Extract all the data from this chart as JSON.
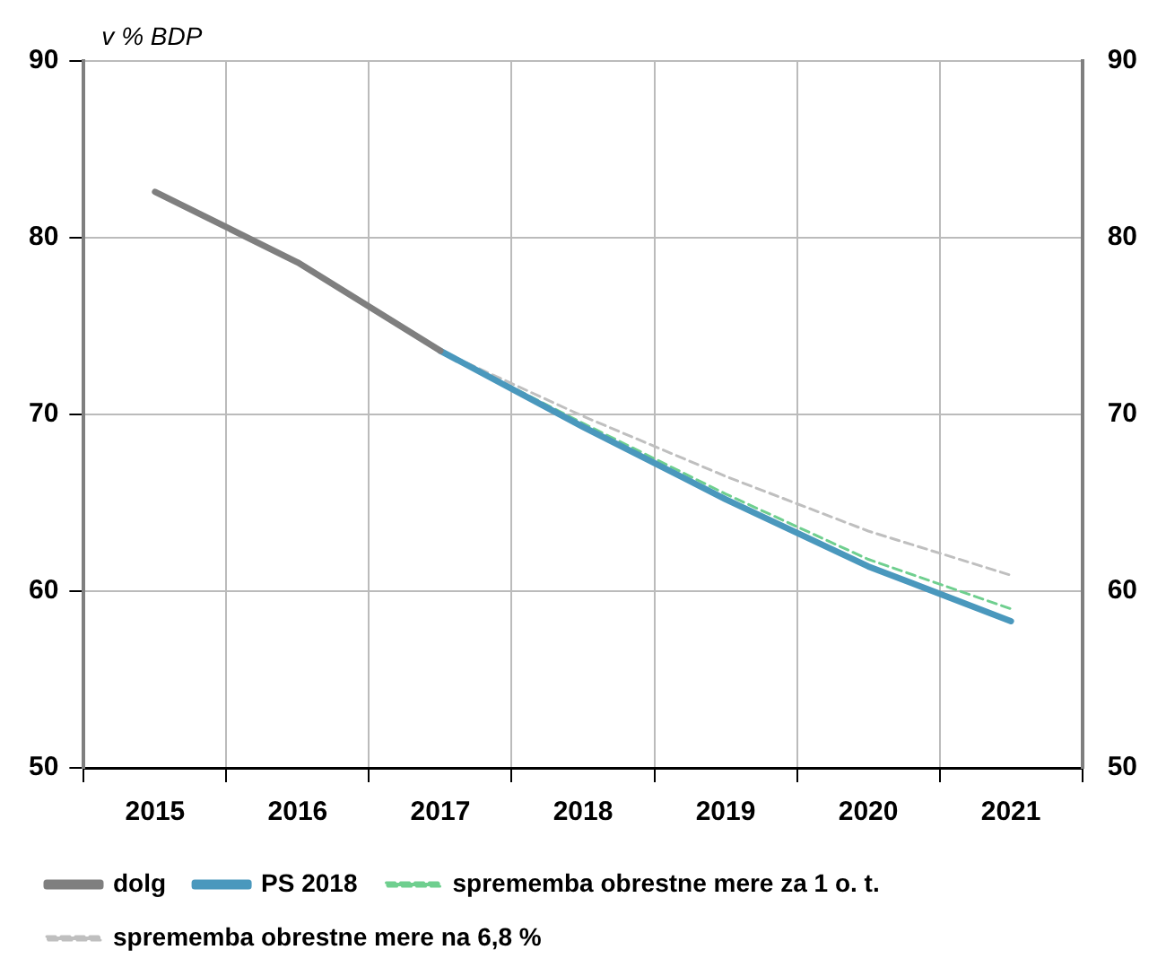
{
  "chart_data": {
    "type": "line",
    "ylabel": "v % BDP",
    "categories": [
      "2015",
      "2016",
      "2017",
      "2018",
      "2019",
      "2020",
      "2021"
    ],
    "series": [
      {
        "name": "dolg",
        "color": "#7f7f7f",
        "values": [
          82.6,
          78.6,
          73.6,
          null,
          null,
          null,
          null
        ]
      },
      {
        "name": "PS 2018",
        "color": "#4a98bd",
        "values": [
          null,
          null,
          73.6,
          69.3,
          65.2,
          61.4,
          58.3
        ]
      },
      {
        "name": "sprememba obrestne mere za 1 o. t.",
        "color": "#6fcf8f",
        "line_style": "dashed",
        "values": [
          null,
          null,
          73.6,
          69.5,
          65.5,
          61.8,
          59.0
        ]
      },
      {
        "name": "sprememba obrestne mere na 6,8 %",
        "color": "#bfbfbf",
        "line_style": "dashed",
        "values": [
          null,
          null,
          73.6,
          69.9,
          66.5,
          63.4,
          60.9
        ]
      }
    ],
    "ylim": [
      50,
      90
    ],
    "yticks": [
      50,
      60,
      70,
      80,
      90
    ],
    "y2lim": [
      50,
      90
    ],
    "y2ticks": [
      50,
      60,
      70,
      80,
      90
    ],
    "grid": true,
    "legend": "bottom",
    "marker": "none"
  }
}
